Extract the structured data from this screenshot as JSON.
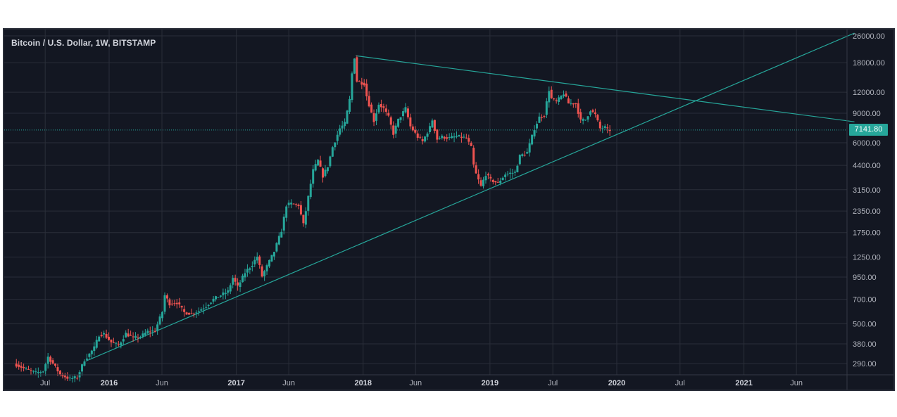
{
  "chart_data": {
    "type": "candlestick",
    "title": "Bitcoin / U.S. Dollar, 1W, BITSTAMP",
    "y_scale": "log",
    "ylim": [
      250,
      27000
    ],
    "y_ticks": [
      "26000.00",
      "18000.00",
      "12000.00",
      "9000.00",
      "6000.00",
      "4400.00",
      "3150.00",
      "2350.00",
      "1750.00",
      "1250.00",
      "950.00",
      "700.00",
      "500.00",
      "380.00",
      "290.00"
    ],
    "x_ticks": [
      {
        "label": "Jul",
        "date": "2015-07-01",
        "bold": false
      },
      {
        "label": "2016",
        "date": "2016-01-01",
        "bold": true
      },
      {
        "label": "Jun",
        "date": "2016-06-01",
        "bold": false
      },
      {
        "label": "2017",
        "date": "2017-01-01",
        "bold": true
      },
      {
        "label": "Jun",
        "date": "2017-06-01",
        "bold": false
      },
      {
        "label": "2018",
        "date": "2018-01-01",
        "bold": true
      },
      {
        "label": "Jun",
        "date": "2018-06-01",
        "bold": false
      },
      {
        "label": "2019",
        "date": "2019-01-01",
        "bold": true
      },
      {
        "label": "Jul",
        "date": "2019-07-01",
        "bold": false
      },
      {
        "label": "2020",
        "date": "2020-01-01",
        "bold": true
      },
      {
        "label": "Jul",
        "date": "2020-07-01",
        "bold": false
      },
      {
        "label": "2021",
        "date": "2021-01-01",
        "bold": true
      },
      {
        "label": "Jun",
        "date": "2021-06-01",
        "bold": false
      }
    ],
    "grid": true,
    "last_price": 7141.8,
    "last_price_label": "7141.80",
    "colors": {
      "up": "#26a69a",
      "down": "#ef5350",
      "background": "#131722",
      "grid": "#2a2e39",
      "trendline": "#26a69a",
      "text": "#b2b5be"
    },
    "trendlines": [
      {
        "name": "resistance",
        "from": {
          "date": "2017-12-11",
          "price": 19800
        },
        "to": {
          "date": "2021-11-15",
          "price": 8000
        }
      },
      {
        "name": "support",
        "from": {
          "date": "2015-10-26",
          "price": 300
        },
        "to": {
          "date": "2021-11-15",
          "price": 27000
        }
      }
    ],
    "price_path": [
      [
        "2015-04-06",
        290
      ],
      [
        "2015-05-04",
        272
      ],
      [
        "2015-06-08",
        255
      ],
      [
        "2015-06-29",
        262
      ],
      [
        "2015-07-13",
        318
      ],
      [
        "2015-07-27",
        290
      ],
      [
        "2015-08-17",
        250
      ],
      [
        "2015-09-14",
        235
      ],
      [
        "2015-10-05",
        240
      ],
      [
        "2015-10-26",
        305
      ],
      [
        "2015-11-09",
        330
      ],
      [
        "2015-11-23",
        360
      ],
      [
        "2015-12-07",
        430
      ],
      [
        "2015-12-21",
        435
      ],
      [
        "2016-01-11",
        388
      ],
      [
        "2016-02-01",
        372
      ],
      [
        "2016-02-22",
        438
      ],
      [
        "2016-03-14",
        412
      ],
      [
        "2016-04-04",
        420
      ],
      [
        "2016-04-25",
        450
      ],
      [
        "2016-05-16",
        455
      ],
      [
        "2016-06-06",
        590
      ],
      [
        "2016-06-13",
        740
      ],
      [
        "2016-06-27",
        660
      ],
      [
        "2016-07-18",
        670
      ],
      [
        "2016-08-08",
        585
      ],
      [
        "2016-08-29",
        575
      ],
      [
        "2016-09-19",
        600
      ],
      [
        "2016-10-10",
        640
      ],
      [
        "2016-10-31",
        700
      ],
      [
        "2016-11-21",
        740
      ],
      [
        "2016-12-12",
        780
      ],
      [
        "2016-12-26",
        940
      ],
      [
        "2017-01-09",
        830
      ],
      [
        "2017-01-30",
        1010
      ],
      [
        "2017-02-20",
        1130
      ],
      [
        "2017-03-06",
        1260
      ],
      [
        "2017-03-20",
        960
      ],
      [
        "2017-04-03",
        1100
      ],
      [
        "2017-04-24",
        1350
      ],
      [
        "2017-05-15",
        1800
      ],
      [
        "2017-05-29",
        2550
      ],
      [
        "2017-06-12",
        2600
      ],
      [
        "2017-07-03",
        2550
      ],
      [
        "2017-07-17",
        1950
      ],
      [
        "2017-07-31",
        2850
      ],
      [
        "2017-08-14",
        4100
      ],
      [
        "2017-08-28",
        4700
      ],
      [
        "2017-09-11",
        3800
      ],
      [
        "2017-09-25",
        4350
      ],
      [
        "2017-10-09",
        5650
      ],
      [
        "2017-10-30",
        7300
      ],
      [
        "2017-11-13",
        7800
      ],
      [
        "2017-11-27",
        10800
      ],
      [
        "2017-12-04",
        15500
      ],
      [
        "2017-12-11",
        19400
      ],
      [
        "2017-12-18",
        14000
      ],
      [
        "2017-12-25",
        13800
      ],
      [
        "2018-01-08",
        13500
      ],
      [
        "2018-01-15",
        11400
      ],
      [
        "2018-01-29",
        9000
      ],
      [
        "2018-02-05",
        8100
      ],
      [
        "2018-02-19",
        10200
      ],
      [
        "2018-03-05",
        9600
      ],
      [
        "2018-03-19",
        8500
      ],
      [
        "2018-04-02",
        6800
      ],
      [
        "2018-04-16",
        8200
      ],
      [
        "2018-05-07",
        9600
      ],
      [
        "2018-05-21",
        7500
      ],
      [
        "2018-06-11",
        6500
      ],
      [
        "2018-06-25",
        6100
      ],
      [
        "2018-07-16",
        7400
      ],
      [
        "2018-07-23",
        8200
      ],
      [
        "2018-08-06",
        6300
      ],
      [
        "2018-08-20",
        6500
      ],
      [
        "2018-09-10",
        6400
      ],
      [
        "2018-10-01",
        6550
      ],
      [
        "2018-10-29",
        6400
      ],
      [
        "2018-11-12",
        5600
      ],
      [
        "2018-11-19",
        4400
      ],
      [
        "2018-11-26",
        3900
      ],
      [
        "2018-12-10",
        3300
      ],
      [
        "2018-12-24",
        3900
      ],
      [
        "2019-01-07",
        3600
      ],
      [
        "2019-01-28",
        3450
      ],
      [
        "2019-02-18",
        3900
      ],
      [
        "2019-03-18",
        4000
      ],
      [
        "2019-04-01",
        5000
      ],
      [
        "2019-04-22",
        5250
      ],
      [
        "2019-05-13",
        7300
      ],
      [
        "2019-05-27",
        8500
      ],
      [
        "2019-06-10",
        8800
      ],
      [
        "2019-06-24",
        12400
      ],
      [
        "2019-07-01",
        11000
      ],
      [
        "2019-07-15",
        10500
      ],
      [
        "2019-08-05",
        11800
      ],
      [
        "2019-08-19",
        10300
      ],
      [
        "2019-09-09",
        10300
      ],
      [
        "2019-09-23",
        8100
      ],
      [
        "2019-10-07",
        8250
      ],
      [
        "2019-10-21",
        9400
      ],
      [
        "2019-11-04",
        8800
      ],
      [
        "2019-11-18",
        7300
      ],
      [
        "2019-12-02",
        7400
      ],
      [
        "2019-12-09",
        7150
      ]
    ]
  }
}
